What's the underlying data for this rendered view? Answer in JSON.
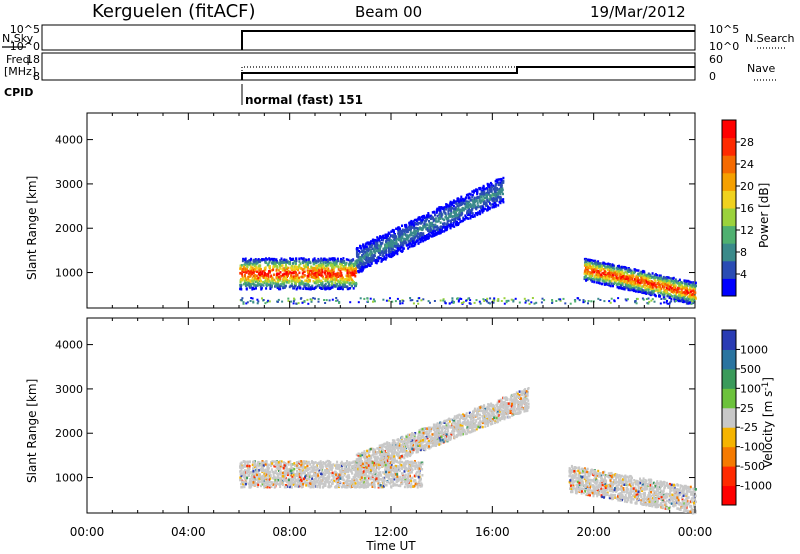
{
  "header": {
    "station": "Kerguelen (fitACF)",
    "beam": "Beam 00",
    "date": "19/Mar/2012"
  },
  "summary": {
    "nsky_label": "N.Sky",
    "nsky_ticks": [
      "10^5",
      "10^0"
    ],
    "nsearch_label": "N.Search",
    "nsearch_ticks": [
      "10^5",
      "10^0"
    ],
    "freq_label_line1": "Freq.",
    "freq_label_line2": "[MHz]",
    "freq_ticks": [
      "18",
      "8"
    ],
    "nave_label": "Nave",
    "nave_ticks": [
      "60",
      "0"
    ],
    "cpid_label": "CPID",
    "cpid_text": "normal (fast) 151"
  },
  "chart_data": [
    {
      "type": "heatmap",
      "panel": "power",
      "ylabel": "Slant Range [km]",
      "xlabel": "Time UT",
      "xlim": [
        "00:00",
        "24:00"
      ],
      "ylim": [
        200,
        4600
      ],
      "yticks": [
        "1000",
        "2000",
        "3000",
        "4000"
      ],
      "colorbar_label": "Power [dB]",
      "colorbar_ticks": [
        "28",
        "24",
        "20",
        "16",
        "12",
        "8",
        "4"
      ],
      "colorscale": [
        "#0000ff",
        "#2a4cb4",
        "#3a8a8a",
        "#4fb070",
        "#9bd23c",
        "#f0d21e",
        "#f5a000",
        "#f56a00",
        "#ff2a00",
        "#ff0000"
      ],
      "features": [
        {
          "t_start": 6.0,
          "t_end": 10.6,
          "range_center": 1000,
          "range_width": 700,
          "peak_db": 28
        },
        {
          "t_start": 10.6,
          "t_end": 16.4,
          "range_center": 2200,
          "range_width": 600,
          "peak_db": 8
        },
        {
          "t_start": 19.6,
          "t_end": 24.0,
          "range_center": 800,
          "range_width": 500,
          "peak_db": 28
        }
      ]
    },
    {
      "type": "heatmap",
      "panel": "velocity",
      "ylabel": "Slant Range [km]",
      "xlabel": "Time UT",
      "xlim": [
        "00:00",
        "24:00"
      ],
      "ylim": [
        200,
        4600
      ],
      "yticks": [
        "1000",
        "2000",
        "3000",
        "4000"
      ],
      "colorbar_label": "Velocity [m s^-1]",
      "colorbar_ticks": [
        "1000",
        "500",
        "100",
        "25",
        "-25",
        "-100",
        "-500",
        "-1000"
      ],
      "colorscale": [
        "#2a3cb4",
        "#2a74a0",
        "#3a9a5a",
        "#6cc23c",
        "#c8c8c8",
        "#f5b400",
        "#f57a00",
        "#ff2a00",
        "#ff0000"
      ],
      "features": [
        {
          "t_start": 6.0,
          "t_end": 13.2,
          "range_center": 1100,
          "range_width": 600,
          "velocity": 0
        },
        {
          "t_start": 10.6,
          "t_end": 17.4,
          "range_center": 2100,
          "range_width": 500,
          "velocity": 0
        },
        {
          "t_start": 19.0,
          "t_end": 24.0,
          "range_center": 700,
          "range_width": 600,
          "velocity": -100
        }
      ]
    }
  ],
  "xaxis": {
    "label": "Time UT",
    "ticks": [
      "00:00",
      "04:00",
      "08:00",
      "12:00",
      "16:00",
      "20:00",
      "00:00"
    ]
  }
}
